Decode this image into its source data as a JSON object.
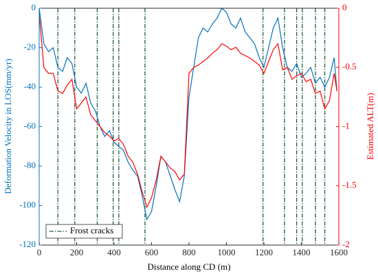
{
  "chart_data": {
    "type": "line",
    "xlabel": "Distance along CD (m)",
    "ylabel": "Deformation Velocity in LOS(mm/yr)",
    "y2label": "Estimated ALT(m)",
    "x": [
      0,
      25,
      50,
      75,
      100,
      125,
      150,
      175,
      200,
      225,
      250,
      275,
      300,
      325,
      350,
      375,
      400,
      425,
      450,
      475,
      500,
      525,
      550,
      575,
      600,
      625,
      650,
      675,
      700,
      725,
      750,
      775,
      800,
      825,
      850,
      875,
      900,
      925,
      950,
      975,
      1000,
      1025,
      1050,
      1075,
      1100,
      1125,
      1150,
      1175,
      1200,
      1225,
      1250,
      1275,
      1300,
      1325,
      1350,
      1375,
      1400,
      1425,
      1450,
      1475,
      1500,
      1525,
      1550,
      1575,
      1590
    ],
    "series": [
      {
        "color": "#0072bd",
        "axis": "y",
        "values": [
          0,
          -18,
          -22,
          -20,
          -30,
          -32,
          -25,
          -28,
          -40,
          -43,
          -38,
          -48,
          -52,
          -60,
          -65,
          -62,
          -68,
          -70,
          -72,
          -78,
          -82,
          -85,
          -95,
          -107,
          -103,
          -90,
          -75,
          -78,
          -85,
          -92,
          -98,
          -85,
          -45,
          -30,
          -15,
          -10,
          -12,
          -8,
          -5,
          0,
          -2,
          -8,
          -10,
          -5,
          -12,
          -15,
          -18,
          -25,
          -30,
          -20,
          -10,
          -5,
          -20,
          -30,
          -32,
          -28,
          -35,
          -33,
          -30,
          -38,
          -35,
          -40,
          -35,
          -25,
          -42
        ]
      },
      {
        "color": "#ff0000",
        "axis": "y2",
        "values": [
          -0.05,
          -0.5,
          -0.55,
          -0.55,
          -0.7,
          -0.72,
          -0.65,
          -0.6,
          -0.85,
          -0.8,
          -0.75,
          -0.9,
          -0.95,
          -1.0,
          -1.05,
          -1.08,
          -1.12,
          -1.1,
          -1.15,
          -1.25,
          -1.3,
          -1.4,
          -1.55,
          -1.68,
          -1.6,
          -1.45,
          -1.25,
          -1.3,
          -1.35,
          -1.38,
          -1.45,
          -1.4,
          -0.55,
          -0.5,
          -0.48,
          -0.45,
          -0.42,
          -0.38,
          -0.35,
          -0.3,
          -0.32,
          -0.35,
          -0.33,
          -0.38,
          -0.4,
          -0.42,
          -0.45,
          -0.48,
          -0.55,
          -0.45,
          -0.35,
          -0.3,
          -0.52,
          -0.5,
          -0.6,
          -0.57,
          -0.55,
          -0.62,
          -0.6,
          -0.72,
          -0.7,
          -0.85,
          -0.78,
          -0.55,
          -0.7
        ]
      }
    ],
    "frost_cracks": {
      "name": "Frost cracks",
      "color": "#1e5c3a",
      "x": [
        100,
        190,
        310,
        395,
        425,
        565,
        1195,
        1310,
        1375,
        1405,
        1475,
        1525
      ]
    },
    "xlim": [
      0,
      1600
    ],
    "xticks": [
      0,
      200,
      400,
      600,
      800,
      1000,
      1200,
      1400,
      1600
    ],
    "ylim": [
      -120,
      0
    ],
    "yticks": [
      -120,
      -100,
      -80,
      -60,
      -40,
      -20,
      0
    ],
    "y2lim": [
      -2,
      0
    ],
    "y2ticks": [
      -2,
      -1.5,
      -1,
      -0.5,
      0
    ],
    "legend": "lower left"
  }
}
